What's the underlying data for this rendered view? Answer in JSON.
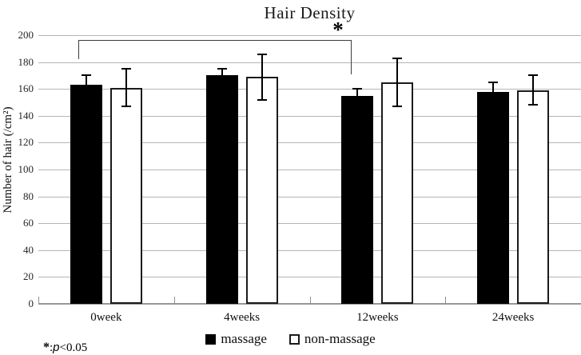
{
  "figure": {
    "title_label": "Hair Density",
    "footnote_parts": {
      "symbol": "*",
      "colon": ":",
      "p_italic": "p",
      "rest": "<0.05"
    }
  },
  "chart_data": {
    "type": "bar",
    "title": "Hair Density",
    "xlabel": "",
    "ylabel": "Number of hair (/cm²)",
    "categories": [
      "0week",
      "4weeks",
      "12weeks",
      "24weeks"
    ],
    "series": [
      {
        "name": "massage",
        "fill": "#000000",
        "values": [
          163,
          170,
          155,
          158
        ],
        "errors": [
          7,
          5,
          5,
          7
        ]
      },
      {
        "name": "non-massage",
        "fill": "#ffffff",
        "values": [
          161,
          169,
          165,
          159
        ],
        "errors": [
          14,
          17,
          18,
          11
        ]
      }
    ],
    "ylim": [
      0,
      200
    ],
    "ytick_step": 20,
    "grid": true,
    "legend_position": "bottom",
    "legend_entries": [
      "massage",
      "non-massage"
    ],
    "significance": {
      "label": "*",
      "note": "p<0.05",
      "between": [
        "0week massage",
        "12weeks massage"
      ]
    },
    "footnote": "*: p<0.05",
    "colors": {
      "bar_massage": "#000000",
      "bar_non_massage": "#ffffff",
      "bar_border": "#1b1b1b",
      "gridline": "#b5b5b5",
      "axis": "#979797",
      "error_bar": "#000000"
    }
  }
}
